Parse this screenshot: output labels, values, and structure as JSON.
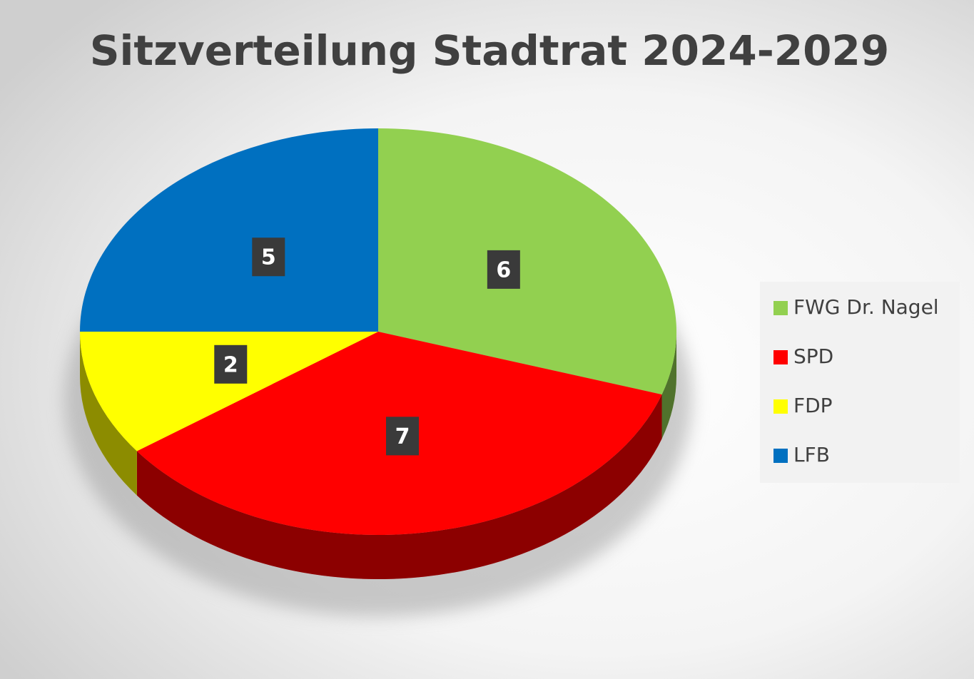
{
  "chart_data": {
    "type": "pie",
    "title": "Sitzverteilung Stadtrat 2024-2029",
    "categories": [
      "FWG Dr. Nagel",
      "SPD",
      "FDP",
      "LFB"
    ],
    "values": [
      6,
      7,
      2,
      5
    ],
    "colors": [
      "#92d050",
      "#ff0000",
      "#ffff00",
      "#0070c0"
    ],
    "legend": "right"
  }
}
